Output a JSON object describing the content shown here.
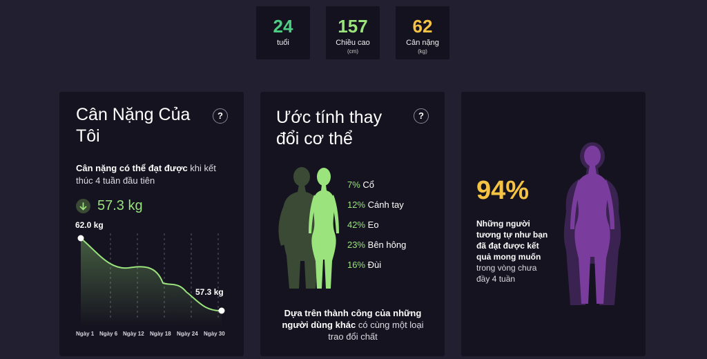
{
  "stats": [
    {
      "value": "24",
      "label": "tuổi",
      "unit": ""
    },
    {
      "value": "157",
      "label": "Chiều cao",
      "unit": "(cm)"
    },
    {
      "value": "62",
      "label": "Cân nặng",
      "unit": "(kg)"
    }
  ],
  "colors": {
    "age": "#4dcf83",
    "height": "#9ae37d",
    "weight": "#f5c343",
    "accent": "#9ae37d",
    "purple": "#7a3d9e"
  },
  "weight_card": {
    "title": "Cân Nặng Của Tôi",
    "help": "?",
    "desc_bold": "Cân nặng có thể đạt được",
    "desc_rest": " khi kết thúc 4 tuần đầu tiên",
    "target": "57.3 kg",
    "start_label": "62.0 kg",
    "end_label": "57.3 kg",
    "x_ticks": [
      "Ngày 1",
      "Ngày 6",
      "Ngày 12",
      "Ngày 18",
      "Ngày 24",
      "Ngày 30"
    ]
  },
  "body_card": {
    "title": "Ước tính thay đổi cơ thể",
    "help": "?",
    "parts": [
      {
        "pct": "7%",
        "name": "Cổ"
      },
      {
        "pct": "12%",
        "name": "Cánh tay"
      },
      {
        "pct": "42%",
        "name": "Eo"
      },
      {
        "pct": "23%",
        "name": "Bên hông"
      },
      {
        "pct": "16%",
        "name": "Đùi"
      }
    ],
    "note_bold": "Dựa trên thành công của những người dùng khác",
    "note_rest": " có cùng một loại trao đổi chất"
  },
  "success_card": {
    "pct": "94%",
    "note_bold": "Những người tương tự như bạn đã đạt được kết quả mong muốn",
    "note_rest": " trong vòng chưa đầy 4 tuần"
  }
}
